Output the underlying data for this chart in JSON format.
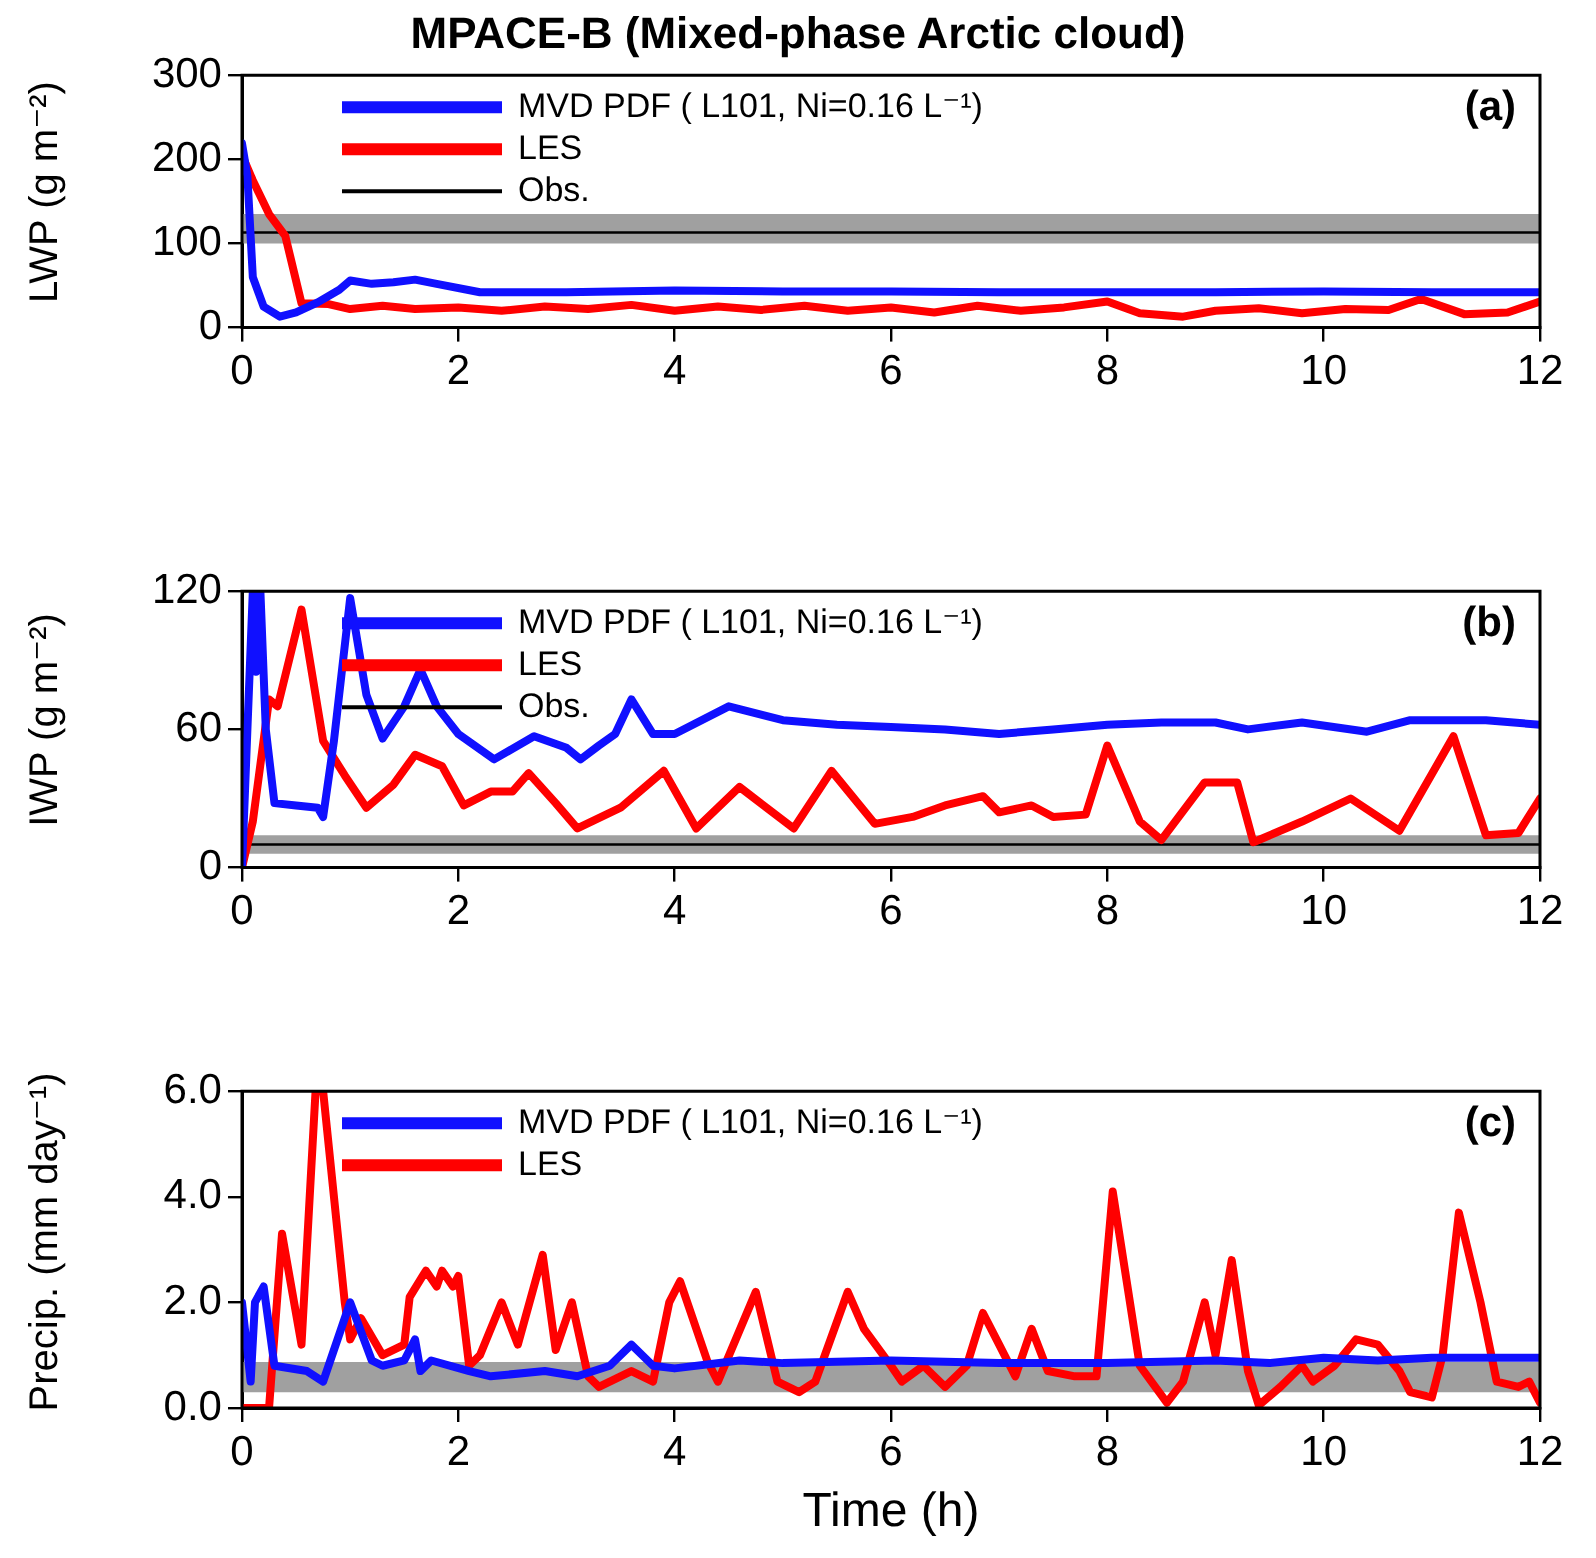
{
  "chart_data": [
    {
      "type": "line",
      "title": "MPACE-B (Mixed-phase Arctic cloud)",
      "ylabel": "LWP (g m⁻²)",
      "annotations": [
        "(a)"
      ],
      "legend": "top left",
      "xlim": [
        0,
        12
      ],
      "xticks": [
        0,
        2,
        4,
        6,
        8,
        10,
        12
      ],
      "ylim": [
        0,
        300
      ],
      "yticks": [
        0,
        100,
        200,
        300
      ],
      "ref_lines": [
        {
          "axis": "y",
          "value": 113,
          "label": "Obs.",
          "color": "#000000"
        }
      ],
      "bands": [
        {
          "axis": "y",
          "from": 100,
          "to": 135,
          "color": "#a0a0a0"
        }
      ],
      "series": [
        {
          "name": "MVD PDF ( L101, Ni=0.16 L⁻¹)",
          "color": "#1010ff",
          "x": [
            0,
            0.05,
            0.1,
            0.2,
            0.35,
            0.5,
            0.7,
            0.9,
            1.0,
            1.2,
            1.4,
            1.6,
            1.8,
            2.2,
            3,
            4,
            5,
            6,
            7,
            8,
            9,
            10,
            11,
            12
          ],
          "values": [
            219,
            180,
            60,
            25,
            13,
            18,
            30,
            45,
            56,
            52,
            54,
            57,
            52,
            42,
            42,
            44,
            43,
            43,
            42,
            42,
            42,
            43,
            42,
            42
          ]
        },
        {
          "name": "LES",
          "color": "#ff0000",
          "x": [
            0,
            0.1,
            0.25,
            0.4,
            0.55,
            0.8,
            1,
            1.3,
            1.6,
            2,
            2.4,
            2.8,
            3.2,
            3.6,
            4,
            4.4,
            4.8,
            5.2,
            5.6,
            6,
            6.4,
            6.8,
            7.2,
            7.6,
            8,
            8.3,
            8.7,
            9,
            9.4,
            9.8,
            10.2,
            10.6,
            10.9,
            11.3,
            11.7,
            12
          ],
          "values": [
            205,
            175,
            135,
            109,
            29,
            28,
            22,
            26,
            22,
            24,
            20,
            25,
            22,
            27,
            20,
            25,
            21,
            26,
            20,
            24,
            18,
            26,
            20,
            24,
            31,
            17,
            13,
            20,
            23,
            17,
            22,
            21,
            34,
            16,
            18,
            31
          ]
        }
      ]
    },
    {
      "type": "line",
      "ylabel": "IWP (g m⁻²)",
      "annotations": [
        "(b)"
      ],
      "legend": "top left",
      "xlim": [
        0,
        12
      ],
      "xticks": [
        0,
        2,
        4,
        6,
        8,
        10,
        12
      ],
      "ylim": [
        0,
        120
      ],
      "yticks": [
        0,
        60,
        120
      ],
      "ref_lines": [
        {
          "axis": "y",
          "value": 10,
          "label": "Obs.",
          "color": "#000000"
        }
      ],
      "bands": [
        {
          "axis": "y",
          "from": 6,
          "to": 14,
          "color": "#a0a0a0"
        }
      ],
      "series": [
        {
          "name": "MVD PDF ( L101, Ni=0.16 L⁻¹)",
          "color": "#1010ff",
          "x": [
            0,
            0.05,
            0.1,
            0.13,
            0.17,
            0.22,
            0.3,
            0.5,
            0.7,
            0.75,
            0.85,
            1.0,
            1.15,
            1.3,
            1.5,
            1.65,
            1.8,
            2.0,
            2.33,
            2.7,
            3.0,
            3.13,
            3.3,
            3.45,
            3.6,
            3.8,
            4.0,
            4.5,
            5,
            5.5,
            6,
            6.5,
            7,
            7.5,
            8,
            8.5,
            9,
            9.3,
            9.8,
            10.4,
            10.8,
            11.5,
            12
          ],
          "values": [
            0,
            60,
            120,
            85,
            120,
            60,
            28,
            27,
            26,
            22,
            55,
            117,
            75,
            56,
            70,
            86,
            70,
            58,
            47,
            57,
            52,
            47,
            53,
            58,
            73,
            58,
            58,
            70,
            64,
            62,
            61,
            60,
            58,
            60,
            62,
            63,
            63,
            60,
            63,
            59,
            64,
            64,
            62
          ]
        },
        {
          "name": "LES",
          "color": "#ff0000",
          "x": [
            0,
            0.1,
            0.25,
            0.33,
            0.55,
            0.75,
            0.95,
            1.15,
            1.4,
            1.6,
            1.85,
            2.05,
            2.3,
            2.5,
            2.65,
            2.9,
            3.1,
            3.5,
            3.9,
            4.2,
            4.6,
            5.1,
            5.45,
            5.85,
            6.2,
            6.5,
            6.85,
            7.0,
            7.3,
            7.5,
            7.8,
            8.0,
            8.3,
            8.5,
            8.9,
            9.2,
            9.35,
            9.8,
            10.25,
            10.7,
            11.2,
            11.5,
            11.8,
            12
          ],
          "values": [
            0,
            20,
            73,
            70,
            112,
            55,
            40,
            26,
            36,
            49,
            44,
            27,
            33,
            33,
            41,
            28,
            17,
            26,
            42,
            17,
            35,
            17,
            42,
            19,
            22,
            27,
            31,
            24,
            27,
            22,
            23,
            53,
            20,
            12,
            37,
            37,
            11,
            20,
            30,
            16,
            57,
            14,
            15,
            30
          ]
        }
      ]
    },
    {
      "type": "line",
      "xlabel": "Time (h)",
      "ylabel": "Precip. (mm day⁻¹)",
      "annotations": [
        "(c)"
      ],
      "legend": "top left",
      "xlim": [
        0,
        12
      ],
      "xticks": [
        0,
        2,
        4,
        6,
        8,
        10,
        12
      ],
      "ylim": [
        0,
        6
      ],
      "yticks": [
        {
          "value": 0,
          "label": "0.0"
        },
        {
          "value": 2,
          "label": "2.0"
        },
        {
          "value": 4,
          "label": "4.0"
        },
        {
          "value": 6,
          "label": "6.0"
        }
      ],
      "bands": [
        {
          "axis": "y",
          "from": 0.3,
          "to": 0.87,
          "color": "#a0a0a0"
        }
      ],
      "series": [
        {
          "name": "MVD PDF ( L101, Ni=0.16 L⁻¹)",
          "color": "#1010ff",
          "x": [
            0,
            0.08,
            0.12,
            0.2,
            0.3,
            0.6,
            0.75,
            1.0,
            1.2,
            1.3,
            1.5,
            1.6,
            1.65,
            1.75,
            2.1,
            2.3,
            2.8,
            3.1,
            3.4,
            3.6,
            3.8,
            4.0,
            4.6,
            5,
            6,
            7,
            8,
            9,
            9.5,
            10,
            10.5,
            11,
            12
          ],
          "values": [
            2.0,
            0.5,
            2.0,
            2.3,
            0.8,
            0.7,
            0.5,
            2.0,
            0.9,
            0.8,
            0.9,
            1.3,
            0.7,
            0.9,
            0.7,
            0.6,
            0.7,
            0.6,
            0.8,
            1.2,
            0.8,
            0.75,
            0.9,
            0.85,
            0.9,
            0.85,
            0.85,
            0.9,
            0.85,
            0.95,
            0.9,
            0.95,
            0.95
          ]
        },
        {
          "name": "LES",
          "color": "#ff0000",
          "x": [
            0,
            0.25,
            0.37,
            0.55,
            0.68,
            0.75,
            0.95,
            1.0,
            1.1,
            1.3,
            1.5,
            1.55,
            1.7,
            1.8,
            1.85,
            1.95,
            2.0,
            2.1,
            2.2,
            2.4,
            2.55,
            2.78,
            2.9,
            3.05,
            3.2,
            3.3,
            3.6,
            3.8,
            3.95,
            4.05,
            4.3,
            4.4,
            4.75,
            4.95,
            5.15,
            5.3,
            5.6,
            5.75,
            6.0,
            6.1,
            6.3,
            6.5,
            6.7,
            6.85,
            7.0,
            7.15,
            7.3,
            7.45,
            7.7,
            7.9,
            8.05,
            8.3,
            8.55,
            8.7,
            8.9,
            9.0,
            9.15,
            9.3,
            9.4,
            9.6,
            9.8,
            9.9,
            10.1,
            10.3,
            10.5,
            10.7,
            10.8,
            11.0,
            11.1,
            11.25,
            11.45,
            11.6,
            11.8,
            11.9,
            12
          ],
          "values": [
            0,
            0,
            3.3,
            1.2,
            6.0,
            6.0,
            2.0,
            1.3,
            1.7,
            1.0,
            1.2,
            2.1,
            2.6,
            2.3,
            2.6,
            2.3,
            2.5,
            0.8,
            1.0,
            2.0,
            1.2,
            2.9,
            1.1,
            2.0,
            0.6,
            0.4,
            0.7,
            0.5,
            2.0,
            2.4,
            0.9,
            0.5,
            2.2,
            0.5,
            0.3,
            0.5,
            2.2,
            1.5,
            0.8,
            0.5,
            0.8,
            0.4,
            0.8,
            1.8,
            1.2,
            0.6,
            1.5,
            0.7,
            0.6,
            0.6,
            4.1,
            0.8,
            0.1,
            0.5,
            2.0,
            1.0,
            2.8,
            0.7,
            0.05,
            0.4,
            0.8,
            0.5,
            0.8,
            1.3,
            1.2,
            0.7,
            0.3,
            0.2,
            1.0,
            3.7,
            2.0,
            0.5,
            0.4,
            0.5,
            0.1
          ]
        }
      ]
    }
  ]
}
